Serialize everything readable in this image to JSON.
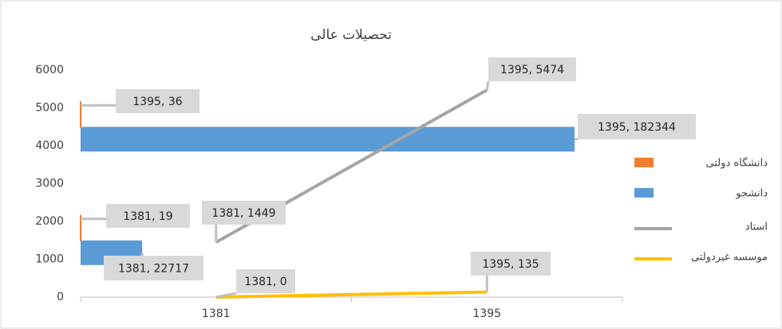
{
  "chart_data": {
    "type": "combo",
    "title": "تحصیلات عالی",
    "categories": [
      "1381",
      "1395"
    ],
    "ylim": [
      0,
      6000
    ],
    "yticks": [
      0,
      1000,
      2000,
      3000,
      4000,
      5000,
      6000
    ],
    "x2lim": [
      0,
      200000
    ],
    "series": [
      {
        "name": "دانشگاه دولتی",
        "type": "bar",
        "axis": "x2",
        "color": "#ed7d31",
        "values": [
          19,
          36
        ],
        "value_labels": [
          "1381, 19",
          "1395, 36"
        ]
      },
      {
        "name": "دانشجو",
        "type": "bar",
        "axis": "x2",
        "color": "#5b9bd5",
        "values": [
          22717,
          182344
        ],
        "value_labels": [
          "1381, 22717",
          "1395, 182344"
        ]
      },
      {
        "name": "استاد",
        "type": "line",
        "color": "#a5a5a5",
        "values": [
          1449,
          5474
        ],
        "value_labels": [
          "1381, 1449",
          "1395, 5474"
        ]
      },
      {
        "name": "موسسه غیردولتی",
        "type": "line",
        "color": "#ffc000",
        "values": [
          0,
          135
        ],
        "value_labels": [
          "1381, 0",
          "1395, 135"
        ]
      }
    ]
  }
}
